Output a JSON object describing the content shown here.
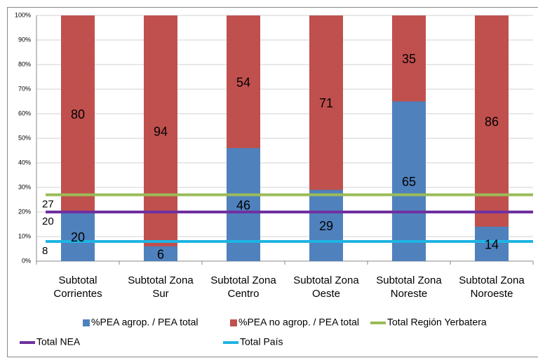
{
  "chart_data": {
    "type": "bar",
    "stacked": true,
    "categories": [
      "Subtotal Corrientes",
      "Subtotal Zona Sur",
      "Subtotal Zona Centro",
      "Subtotal Zona Oeste",
      "Subtotal Zona Noreste",
      "Subtotal Zona Noroeste"
    ],
    "series": [
      {
        "name": "%PEA agrop. / PEA total",
        "color": "#4f81bd",
        "values": [
          20,
          6,
          46,
          29,
          65,
          14
        ]
      },
      {
        "name": "%PEA no agrop. / PEA total",
        "color": "#c0504d",
        "values": [
          80,
          94,
          54,
          71,
          35,
          86
        ]
      }
    ],
    "reference_lines": [
      {
        "name": "Total Región Yerbatera",
        "color": "#9bbb59",
        "value": 27
      },
      {
        "name": "Total NEA",
        "color": "#7030a0",
        "value": 20
      },
      {
        "name": "Total País",
        "color": "#1fb4e3",
        "value": 8
      }
    ],
    "ylim": [
      0,
      100
    ],
    "yticks": [
      {
        "value": 0,
        "label": "0%"
      },
      {
        "value": 10,
        "label": "10%"
      },
      {
        "value": 20,
        "label": "20%"
      },
      {
        "value": 30,
        "label": "30%"
      },
      {
        "value": 40,
        "label": "40%"
      },
      {
        "value": 50,
        "label": "50%"
      },
      {
        "value": 60,
        "label": "60%"
      },
      {
        "value": 70,
        "label": "70%"
      },
      {
        "value": 80,
        "label": "80%"
      },
      {
        "value": 90,
        "label": "90%"
      },
      {
        "value": 100,
        "label": "100%"
      }
    ],
    "grid": true
  }
}
